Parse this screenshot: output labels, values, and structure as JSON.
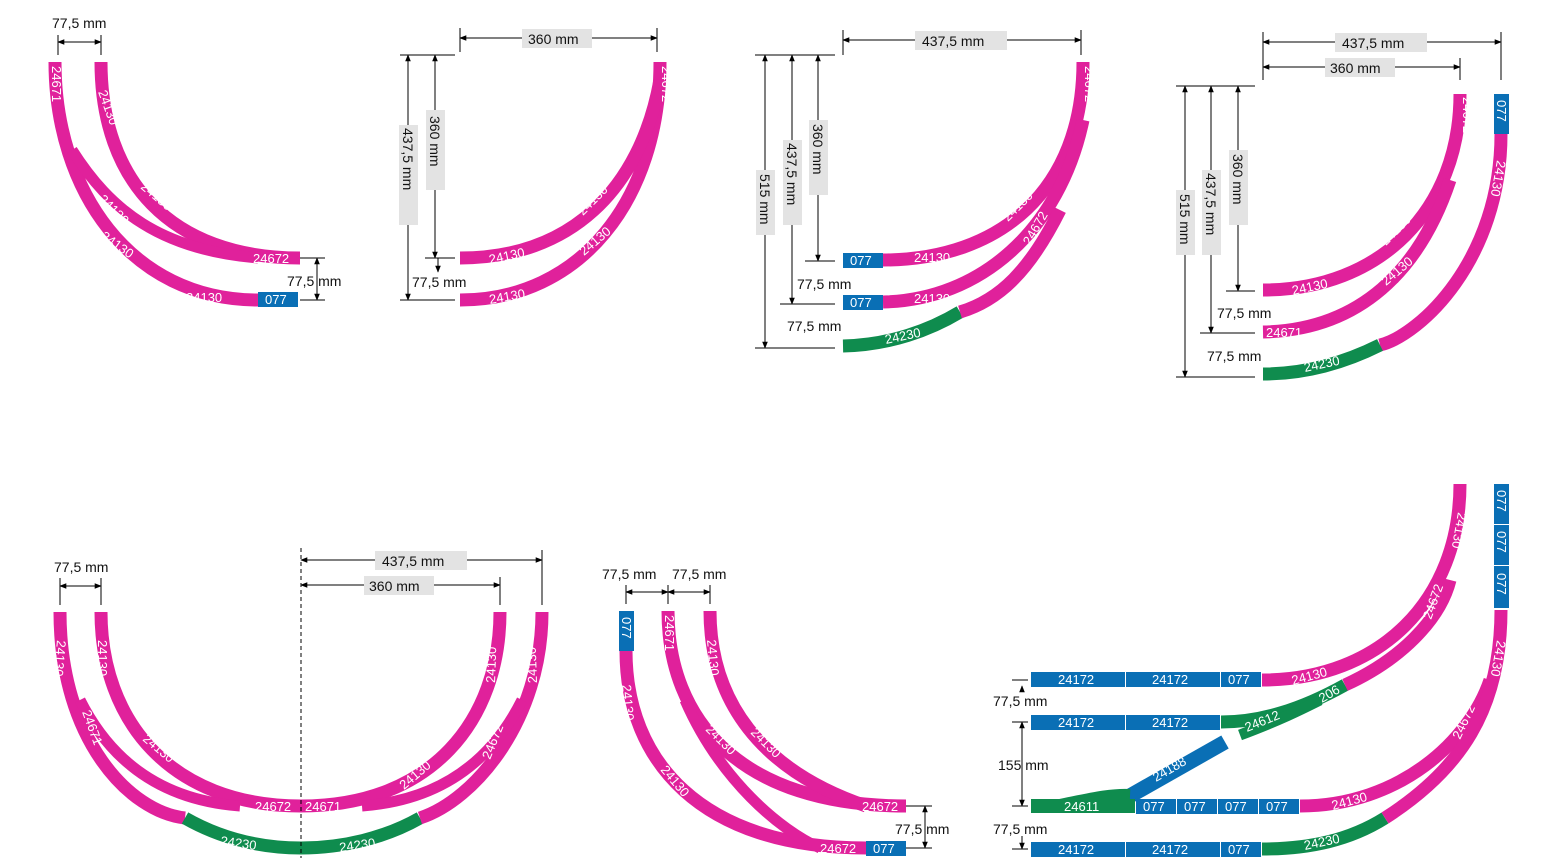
{
  "colors": {
    "curve": "#e0219b",
    "straight": "#0a6fb5",
    "turnout": "#0f8c4e",
    "dimension": "#000000",
    "label_box": "#e3e3e3"
  },
  "dimensions": {
    "d_77_5": "77,5 mm",
    "d_360": "360 mm",
    "d_437_5": "437,5 mm",
    "d_515": "515 mm",
    "d_155": "155 mm"
  },
  "pieces": {
    "p24130": "24130",
    "p24671": "24671",
    "p24672": "24672",
    "p24230": "24230",
    "p24172": "24172",
    "p24188": "24188",
    "p24611": "24611",
    "p24612": "24612",
    "p206": "206",
    "p077": "077"
  }
}
